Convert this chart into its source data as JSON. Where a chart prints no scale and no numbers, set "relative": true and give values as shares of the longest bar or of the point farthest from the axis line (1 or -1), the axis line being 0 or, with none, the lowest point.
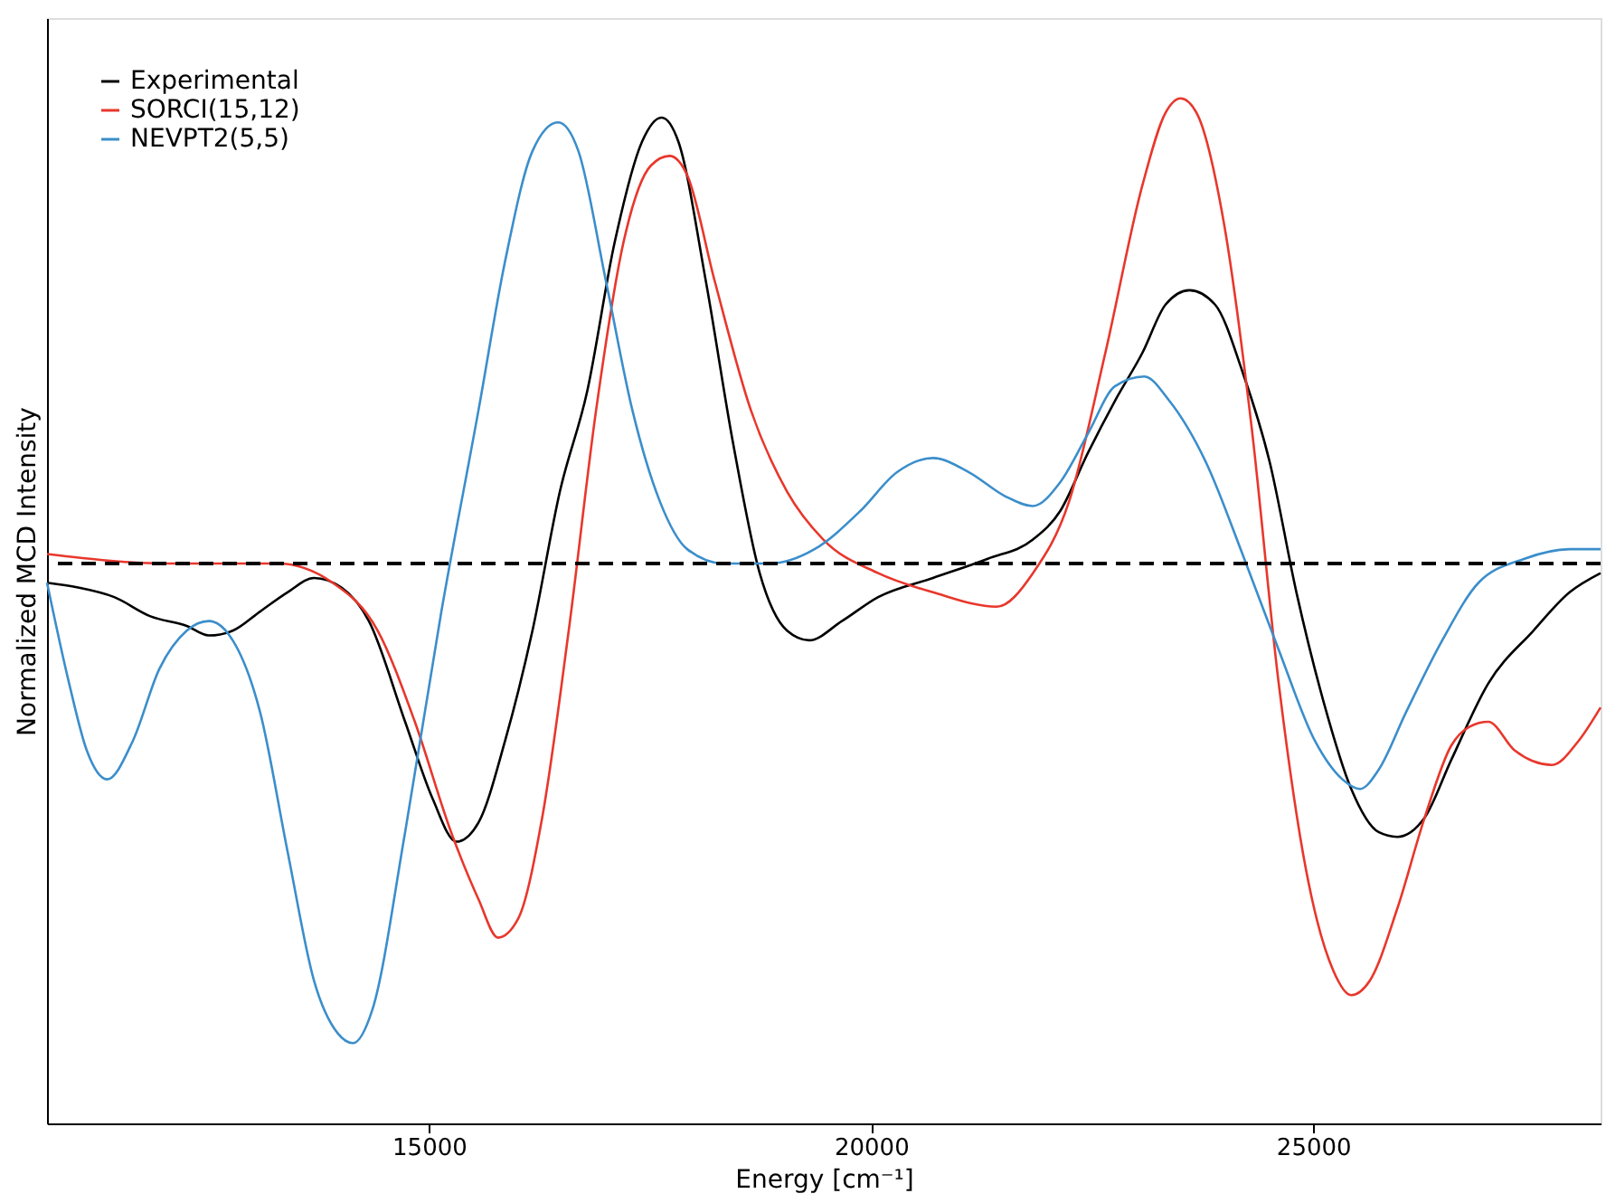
{
  "chart_data": {
    "type": "line",
    "relative": true,
    "xlabel": "Energy [cm⁻¹]",
    "ylabel": "Normalized MCD Intensity",
    "xlim": [
      10680,
      28250
    ],
    "xticks": [
      15000,
      20000,
      25000
    ],
    "grid": false,
    "legend": "top left",
    "line_style": "solid",
    "marker": "none",
    "ref_lines": [
      {
        "axis": "y",
        "value": 0,
        "color": "#000000",
        "line_style": "dashed"
      }
    ],
    "series": [
      {
        "name": "Experimental",
        "color": "#000000",
        "x": [
          10680,
          11030,
          11440,
          11850,
          12260,
          12510,
          12780,
          13090,
          13400,
          13700,
          14010,
          14320,
          14730,
          15040,
          15310,
          15560,
          15860,
          16170,
          16480,
          16790,
          17100,
          17410,
          17630,
          17820,
          18130,
          18440,
          18740,
          19050,
          19300,
          19670,
          20080,
          20700,
          21320,
          21830,
          22140,
          22450,
          22760,
          23070,
          23330,
          23600,
          23890,
          24200,
          24510,
          24810,
          25120,
          25430,
          25740,
          25950,
          26260,
          26560,
          26980,
          27490,
          27900,
          28250
        ],
        "values": [
          -0.04,
          -0.05,
          -0.07,
          -0.11,
          -0.13,
          -0.15,
          -0.14,
          -0.1,
          -0.06,
          -0.03,
          -0.05,
          -0.12,
          -0.33,
          -0.49,
          -0.58,
          -0.54,
          -0.37,
          -0.14,
          0.15,
          0.36,
          0.67,
          0.88,
          0.93,
          0.88,
          0.59,
          0.25,
          -0.02,
          -0.14,
          -0.16,
          -0.12,
          -0.07,
          -0.03,
          0.01,
          0.05,
          0.11,
          0.23,
          0.34,
          0.44,
          0.54,
          0.57,
          0.54,
          0.4,
          0.21,
          -0.06,
          -0.29,
          -0.47,
          -0.56,
          -0.57,
          -0.53,
          -0.41,
          -0.25,
          -0.14,
          -0.06,
          -0.02
        ]
      },
      {
        "name": "SORCI(15,12)",
        "color": "#e8372c",
        "x": [
          10680,
          12060,
          13290,
          13910,
          14420,
          14840,
          15250,
          15560,
          15780,
          16010,
          16280,
          16580,
          16890,
          17200,
          17510,
          17720,
          17920,
          18230,
          18640,
          19050,
          19460,
          20080,
          20700,
          21420,
          21830,
          22240,
          22650,
          23070,
          23330,
          23500,
          23680,
          23990,
          24300,
          24610,
          24920,
          25230,
          25430,
          25640,
          25950,
          26260,
          26560,
          26770,
          26980,
          27280,
          27700,
          28000,
          28250
        ],
        "values": [
          0.02,
          0.0,
          0.0,
          -0.04,
          -0.14,
          -0.33,
          -0.56,
          -0.7,
          -0.78,
          -0.74,
          -0.53,
          -0.14,
          0.32,
          0.67,
          0.83,
          0.85,
          0.81,
          0.59,
          0.32,
          0.15,
          0.05,
          -0.02,
          -0.06,
          -0.09,
          -0.02,
          0.13,
          0.44,
          0.79,
          0.94,
          0.97,
          0.94,
          0.71,
          0.29,
          -0.25,
          -0.64,
          -0.85,
          -0.9,
          -0.87,
          -0.72,
          -0.53,
          -0.38,
          -0.34,
          -0.33,
          -0.39,
          -0.42,
          -0.37,
          -0.3
        ]
      },
      {
        "name": "NEVPT2(5,5)",
        "color": "#3b8ecb",
        "x": [
          10680,
          10930,
          11130,
          11360,
          11650,
          11950,
          12260,
          12510,
          12780,
          13090,
          13400,
          13700,
          13970,
          14140,
          14360,
          14730,
          15140,
          15560,
          15860,
          16170,
          16460,
          16690,
          17000,
          17300,
          17610,
          17920,
          18330,
          18850,
          19360,
          19880,
          20290,
          20700,
          21110,
          21520,
          21830,
          22140,
          22450,
          22760,
          23090,
          23370,
          23790,
          24200,
          24610,
          25020,
          25330,
          25530,
          25740,
          26050,
          26460,
          26870,
          27390,
          27900,
          28250
        ],
        "values": [
          -0.04,
          -0.25,
          -0.39,
          -0.45,
          -0.37,
          -0.22,
          -0.14,
          -0.12,
          -0.16,
          -0.31,
          -0.6,
          -0.87,
          -0.98,
          -1,
          -0.93,
          -0.56,
          -0.1,
          0.32,
          0.63,
          0.86,
          0.92,
          0.86,
          0.59,
          0.32,
          0.13,
          0.03,
          0.0,
          0.0,
          0.03,
          0.11,
          0.19,
          0.22,
          0.19,
          0.14,
          0.12,
          0.17,
          0.27,
          0.37,
          0.39,
          0.34,
          0.21,
          0.02,
          -0.18,
          -0.37,
          -0.45,
          -0.47,
          -0.43,
          -0.31,
          -0.16,
          -0.04,
          0.01,
          0.03,
          0.03
        ]
      }
    ]
  }
}
